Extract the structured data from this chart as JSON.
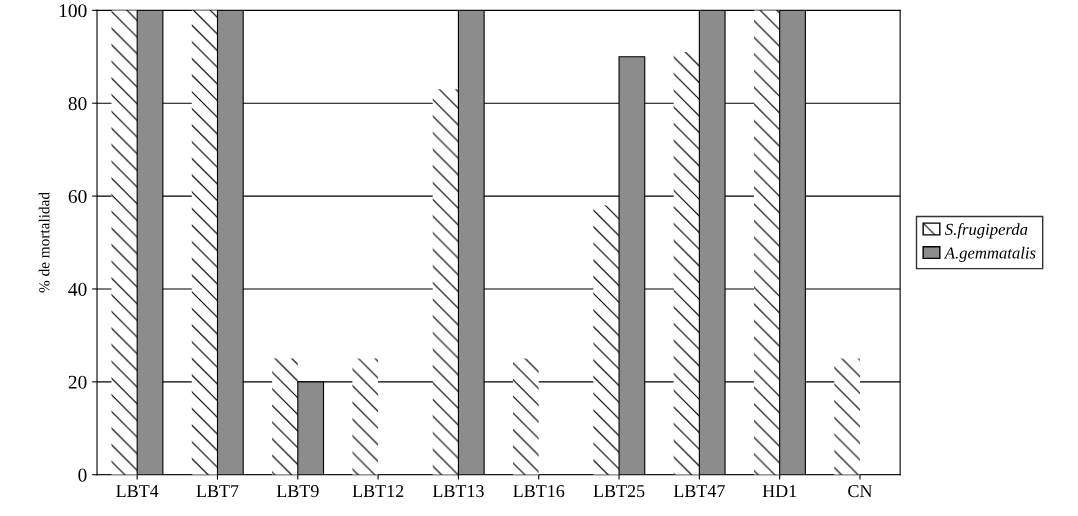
{
  "chart_data": {
    "type": "bar",
    "ylabel": "% de mortalidad",
    "categories": [
      "LBT4",
      "LBT7",
      "LBT9",
      "LBT12",
      "LBT13",
      "LBT16",
      "LBT25",
      "LBT47",
      "HD1",
      "CN"
    ],
    "series": [
      {
        "name": "S.frugiperda",
        "color": "#ffffff",
        "values": [
          100,
          100,
          25,
          25,
          83,
          25,
          58,
          91,
          100,
          25
        ]
      },
      {
        "name": "A.gemmatalis",
        "color": "#8c8c8c",
        "values": [
          100,
          100,
          20,
          0,
          100,
          0,
          90,
          100,
          100,
          0
        ]
      }
    ],
    "ylim": [
      0,
      100
    ],
    "yticks": [
      0,
      20,
      40,
      60,
      80,
      100
    ],
    "grid": "y",
    "legend": "right"
  }
}
